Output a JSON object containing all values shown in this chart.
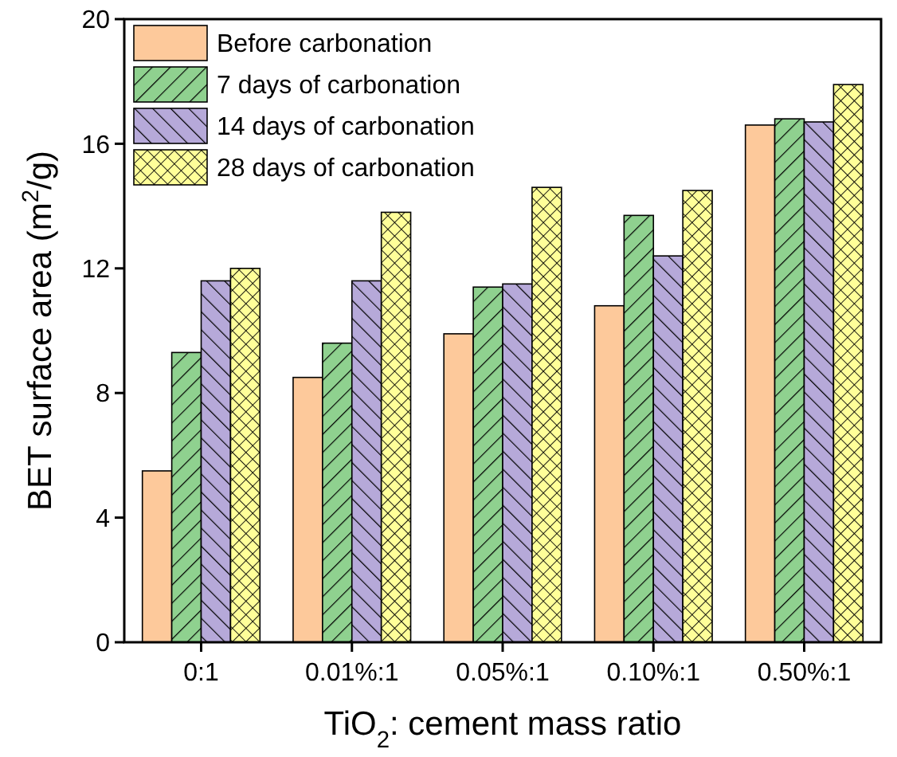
{
  "chart_data": {
    "type": "bar",
    "xlabel": "TiO$_{2}$: cement mass ratio",
    "ylabel": "BET surface area (m$^{2}$/g)",
    "categories": [
      "0:1",
      "0.01%:1",
      "0.05%:1",
      "0.10%:1",
      "0.50%:1"
    ],
    "series": [
      {
        "name": "Before carbonation",
        "color": "#fdc99b",
        "values": [
          5.5,
          8.5,
          9.9,
          10.8,
          16.6
        ]
      },
      {
        "name": "7 days of carbonation",
        "color": "#8fd18f",
        "values": [
          9.3,
          9.6,
          11.4,
          13.7,
          16.8
        ]
      },
      {
        "name": "14 days of carbonation",
        "color": "#b6a9d9",
        "values": [
          11.6,
          11.6,
          11.5,
          12.4,
          16.7
        ]
      },
      {
        "name": "28 days of carbonation",
        "color": "#ffff99",
        "values": [
          12.0,
          13.8,
          14.6,
          14.5,
          17.9
        ]
      }
    ],
    "ylim": [
      0,
      20
    ],
    "yticks": [
      0,
      4,
      8,
      12,
      16,
      20
    ],
    "legend": "top left"
  }
}
